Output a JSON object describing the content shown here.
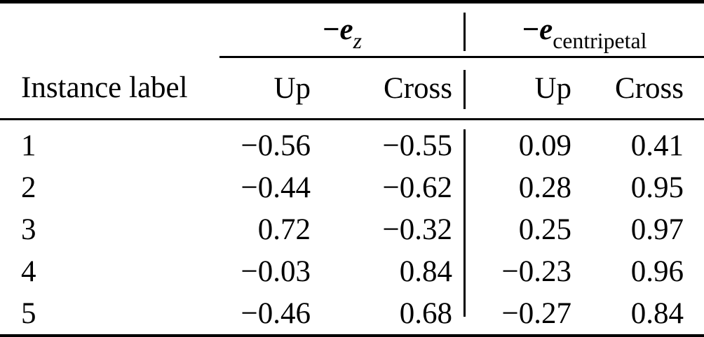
{
  "colors": {
    "background": "#ffffff",
    "text": "#000000",
    "rule": "#000000"
  },
  "table": {
    "row_header_label": "Instance label",
    "groups": [
      {
        "minus": "−",
        "symbol": "e",
        "subscript": "z"
      },
      {
        "minus": "−",
        "symbol": "e",
        "subscript": "centripetal"
      }
    ],
    "sub_columns": [
      "Up",
      "Cross",
      "Up",
      "Cross"
    ],
    "rows": [
      {
        "label": "1",
        "values": [
          "−0.56",
          "−0.55",
          "0.09",
          "0.41"
        ]
      },
      {
        "label": "2",
        "values": [
          "−0.44",
          "−0.62",
          "0.28",
          "0.95"
        ]
      },
      {
        "label": "3",
        "values": [
          "0.72",
          "−0.32",
          "0.25",
          "0.97"
        ]
      },
      {
        "label": "4",
        "values": [
          "−0.03",
          "0.84",
          "−0.23",
          "0.96"
        ]
      },
      {
        "label": "5",
        "values": [
          "−0.46",
          "0.68",
          "−0.27",
          "0.84"
        ]
      }
    ]
  },
  "chart_data": {
    "type": "table",
    "column_groups": [
      "−e_z",
      "−e_centripetal"
    ],
    "columns": [
      "Instance label",
      "Up",
      "Cross",
      "Up",
      "Cross"
    ],
    "rows": [
      [
        "1",
        -0.56,
        -0.55,
        0.09,
        0.41
      ],
      [
        "2",
        -0.44,
        -0.62,
        0.28,
        0.95
      ],
      [
        "3",
        0.72,
        -0.32,
        0.25,
        0.97
      ],
      [
        "4",
        -0.03,
        0.84,
        -0.23,
        0.96
      ],
      [
        "5",
        -0.46,
        0.68,
        -0.27,
        0.84
      ]
    ]
  }
}
